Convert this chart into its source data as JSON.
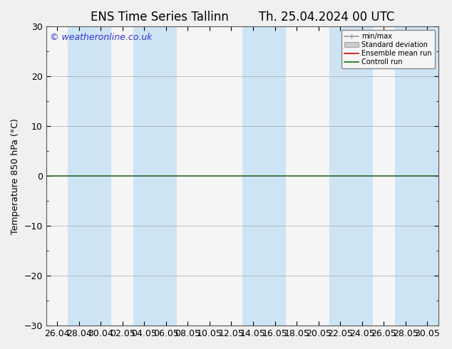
{
  "title_left": "ENS Time Series Tallinn",
  "title_right": "Th. 25.04.2024 00 UTC",
  "ylabel": "Temperature 850 hPa (°C)",
  "watermark": "© weatheronline.co.uk",
  "ylim": [
    -30,
    30
  ],
  "yticks": [
    -30,
    -20,
    -10,
    0,
    10,
    20,
    30
  ],
  "x_tick_labels": [
    "26.04",
    "28.04",
    "30.04",
    "02.05",
    "04.05",
    "06.05",
    "08.05",
    "10.05",
    "12.05",
    "14.05",
    "16.05",
    "18.05",
    "20.05",
    "22.05",
    "24.05",
    "26.05",
    "28.05",
    "30.05"
  ],
  "background_color": "#f0f0f0",
  "plot_bg_color": "#f5f5f5",
  "band_color": "#cde4f5",
  "zero_line_color": "#2d6a2d",
  "legend_items": [
    "min/max",
    "Standard deviation",
    "Ensemble mean run",
    "Controll run"
  ],
  "legend_line_color": "#999999",
  "legend_std_color": "#cccccc",
  "legend_ens_color": "#cc0000",
  "legend_ctrl_color": "#007700",
  "title_fontsize": 12,
  "ylabel_fontsize": 9,
  "tick_fontsize": 9,
  "watermark_color": "#3333cc",
  "band_positions": [
    1,
    4,
    6,
    9,
    10,
    13,
    14,
    15
  ]
}
